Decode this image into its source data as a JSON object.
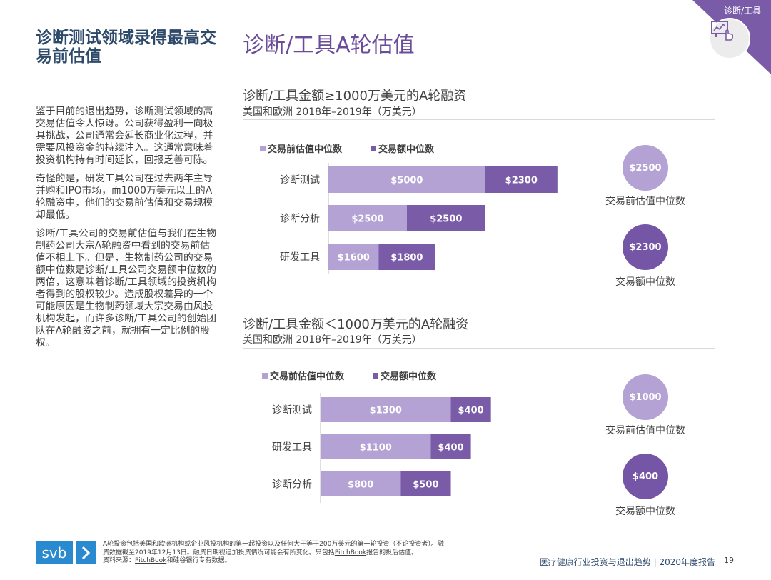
{
  "corner": {
    "label": "诊断/工具",
    "icon": "chart-screen-hand-icon"
  },
  "left": {
    "title": "诊断测试领域录得最高交易前估值",
    "paragraphs": [
      "鉴于目前的退出趋势，诊断测试领域的高交易估值令人惊讶。公司获得盈利一向极具挑战，公司通常会延长商业化过程，并需要风投资金的持续注入。这通常意味着投资机构持有时间延长，回报乏善可陈。",
      "奇怪的是，研发工具公司在过去两年主导并购和IPO市场，而1000万美元以上的A轮融资中，他们的交易前估值和交易规模却最低。",
      "诊断/工具公司的交易前估值与我们在生物制药公司大宗A轮融资中看到的交易前估值不相上下。但是，生物制药公司的交易额中位数是诊断/工具公司交易额中位数的两倍，这意味着诊断/工具领域的投资机构者得到的股权较少。造成股权差异的一个可能原因是生物制药领域大宗交易由风投机构发起，而许多诊断/工具公司的创始团队在A轮融资之前，就拥有一定比例的股权。"
    ]
  },
  "main_title": "诊断/工具A轮估值",
  "colors": {
    "premoney": "#b3a2d3",
    "deal": "#7a5ba8",
    "deal_circle": "#7556a6"
  },
  "charts": [
    {
      "title": "诊断/工具金额≥1000万美元的A轮融资",
      "subtitle": "美国和欧洲 2018年–2019年（万美元）",
      "legend": [
        "交易前估值中位数",
        "交易额中位数"
      ],
      "circles": [
        {
          "value": "$2500",
          "label": "交易前估值中位数"
        },
        {
          "value": "$2300",
          "label": "交易额中位数"
        }
      ]
    },
    {
      "title": "诊断/工具金额＜1000万美元的A轮融资",
      "subtitle": "美国和欧洲 2018年–2019年（万美元）",
      "legend": [
        "交易前估值中位数",
        "交易额中位数"
      ],
      "circles": [
        {
          "value": "$1000",
          "label": "交易前估值中位数"
        },
        {
          "value": "$400",
          "label": "交易额中位数"
        }
      ]
    }
  ],
  "chart_data": [
    {
      "type": "bar",
      "orientation": "horizontal",
      "stacked": true,
      "title": "诊断/工具金额≥1000万美元的A轮融资",
      "subtitle": "美国和欧洲 2018年–2019年（万美元）",
      "categories": [
        "诊断测试",
        "诊断分析",
        "研发工具"
      ],
      "series": [
        {
          "name": "交易前估值中位数",
          "values": [
            5000,
            2500,
            1600
          ],
          "labels": [
            "$5000",
            "$2500",
            "$1600"
          ]
        },
        {
          "name": "交易额中位数",
          "values": [
            2300,
            2500,
            1800
          ],
          "labels": [
            "$2300",
            "$2500",
            "$1800"
          ]
        }
      ],
      "legend": "top-left"
    },
    {
      "type": "bar",
      "orientation": "horizontal",
      "stacked": true,
      "title": "诊断/工具金额＜1000万美元的A轮融资",
      "subtitle": "美国和欧洲 2018年–2019年（万美元）",
      "categories": [
        "诊断测试",
        "研发工具",
        "诊断分析"
      ],
      "series": [
        {
          "name": "交易前估值中位数",
          "values": [
            1300,
            1100,
            800
          ],
          "labels": [
            "$1300",
            "$1100",
            "$800"
          ]
        },
        {
          "name": "交易额中位数",
          "values": [
            400,
            400,
            500
          ],
          "labels": [
            "$400",
            "$400",
            "$500"
          ]
        }
      ],
      "legend": "top-left"
    }
  ],
  "footer": {
    "logo_text": "svb",
    "footnote_line1": "A轮投资包括美国和欧洲机构或企业风投机构的第一起投资以及任何大于等于200万美元的第一轮投资（不论投资者）。融",
    "footnote_line2": "资数据截至2019年12月13日。融资日期视追加投资情况可能会有所变化。只包括",
    "footnote_pb1": "PitchBook",
    "footnote_line2b": "报告的投后估值。",
    "footnote_line3a": "资料来源：",
    "footnote_pb2": "PitchBook",
    "footnote_line3b": "和硅谷银行专有数据。",
    "report": "医疗健康行业投资与退出趋势 | 2020年度报告",
    "page": "19"
  }
}
